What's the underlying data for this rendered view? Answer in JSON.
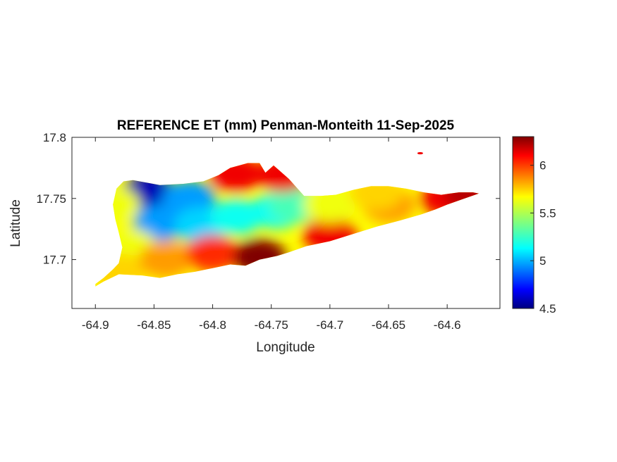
{
  "chart_data": {
    "type": "heatmap",
    "title": "REFERENCE ET (mm) Penman-Monteith 11-Sep-2025",
    "xlabel": "Longitude",
    "ylabel": "Latitude",
    "xlim": [
      -64.92,
      -64.555
    ],
    "ylim": [
      17.66,
      17.8
    ],
    "xticks": [
      -64.9,
      -64.85,
      -64.8,
      -64.75,
      -64.7,
      -64.65,
      -64.6
    ],
    "xtick_labels": [
      "-64.9",
      "-64.85",
      "-64.8",
      "-64.75",
      "-64.7",
      "-64.65",
      "-64.6"
    ],
    "yticks": [
      17.7,
      17.75,
      17.8
    ],
    "ytick_labels": [
      "17.7",
      "17.75",
      "17.8"
    ],
    "colormap": "jet",
    "colorbar": {
      "limits": [
        4.5,
        6.3
      ],
      "ticks": [
        4.5,
        5,
        5.5,
        6
      ],
      "tick_labels": [
        "4.5",
        "5",
        "5.5",
        "6"
      ]
    },
    "grid": false,
    "field": {
      "description_values": "Approximate reference evapotranspiration in mm over the island area",
      "region_outline": [
        [
          -64.9,
          17.68
        ],
        [
          -64.893,
          17.685
        ],
        [
          -64.885,
          17.692
        ],
        [
          -64.88,
          17.697
        ],
        [
          -64.877,
          17.71
        ],
        [
          -64.88,
          17.722
        ],
        [
          -64.883,
          17.733
        ],
        [
          -64.885,
          17.745
        ],
        [
          -64.882,
          17.758
        ],
        [
          -64.876,
          17.764
        ],
        [
          -64.868,
          17.765
        ],
        [
          -64.845,
          17.761
        ],
        [
          -64.825,
          17.762
        ],
        [
          -64.808,
          17.764
        ],
        [
          -64.795,
          17.769
        ],
        [
          -64.785,
          17.775
        ],
        [
          -64.77,
          17.779
        ],
        [
          -64.76,
          17.779
        ],
        [
          -64.755,
          17.771
        ],
        [
          -64.748,
          17.777
        ],
        [
          -64.735,
          17.766
        ],
        [
          -64.722,
          17.752
        ],
        [
          -64.708,
          17.752
        ],
        [
          -64.695,
          17.753
        ],
        [
          -64.68,
          17.757
        ],
        [
          -64.665,
          17.76
        ],
        [
          -64.65,
          17.76
        ],
        [
          -64.635,
          17.758
        ],
        [
          -64.62,
          17.755
        ],
        [
          -64.605,
          17.753
        ],
        [
          -64.59,
          17.755
        ],
        [
          -64.578,
          17.755
        ],
        [
          -64.573,
          17.754
        ],
        [
          -64.588,
          17.749
        ],
        [
          -64.6,
          17.745
        ],
        [
          -64.61,
          17.741
        ],
        [
          -64.622,
          17.737
        ],
        [
          -64.64,
          17.732
        ],
        [
          -64.66,
          17.727
        ],
        [
          -64.68,
          17.721
        ],
        [
          -64.7,
          17.715
        ],
        [
          -64.72,
          17.711
        ],
        [
          -64.735,
          17.706
        ],
        [
          -64.745,
          17.703
        ],
        [
          -64.76,
          17.7
        ],
        [
          -64.772,
          17.695
        ],
        [
          -64.785,
          17.696
        ],
        [
          -64.8,
          17.693
        ],
        [
          -64.815,
          17.69
        ],
        [
          -64.83,
          17.688
        ],
        [
          -64.845,
          17.685
        ],
        [
          -64.86,
          17.687
        ],
        [
          -64.88,
          17.688
        ],
        [
          -64.893,
          17.682
        ],
        [
          -64.9,
          17.678
        ]
      ],
      "samples": [
        {
          "lon": -64.855,
          "lat": 17.755,
          "value": 4.6
        },
        {
          "lon": -64.82,
          "lat": 17.75,
          "value": 5.0
        },
        {
          "lon": -64.845,
          "lat": 17.73,
          "value": 5.0
        },
        {
          "lon": -64.81,
          "lat": 17.728,
          "value": 5.1
        },
        {
          "lon": -64.78,
          "lat": 17.735,
          "value": 5.2
        },
        {
          "lon": -64.745,
          "lat": 17.74,
          "value": 5.2
        },
        {
          "lon": -64.73,
          "lat": 17.745,
          "value": 5.3
        },
        {
          "lon": -64.87,
          "lat": 17.71,
          "value": 5.6
        },
        {
          "lon": -64.885,
          "lat": 17.745,
          "value": 5.6
        },
        {
          "lon": -64.88,
          "lat": 17.69,
          "value": 5.7
        },
        {
          "lon": -64.84,
          "lat": 17.7,
          "value": 5.8
        },
        {
          "lon": -64.8,
          "lat": 17.705,
          "value": 6.0
        },
        {
          "lon": -64.78,
          "lat": 17.77,
          "value": 6.1
        },
        {
          "lon": -64.74,
          "lat": 17.77,
          "value": 6.1
        },
        {
          "lon": -64.76,
          "lat": 17.702,
          "value": 6.3
        },
        {
          "lon": -64.7,
          "lat": 17.72,
          "value": 6.1
        },
        {
          "lon": -64.65,
          "lat": 17.745,
          "value": 5.8
        },
        {
          "lon": -64.6,
          "lat": 17.75,
          "value": 6.1
        },
        {
          "lon": -64.58,
          "lat": 17.754,
          "value": 6.2
        },
        {
          "lon": -64.7,
          "lat": 17.745,
          "value": 5.6
        },
        {
          "lon": -64.66,
          "lat": 17.755,
          "value": 5.7
        }
      ],
      "islet": {
        "lon": -64.623,
        "lat": 17.787,
        "value": 6.1
      }
    }
  }
}
